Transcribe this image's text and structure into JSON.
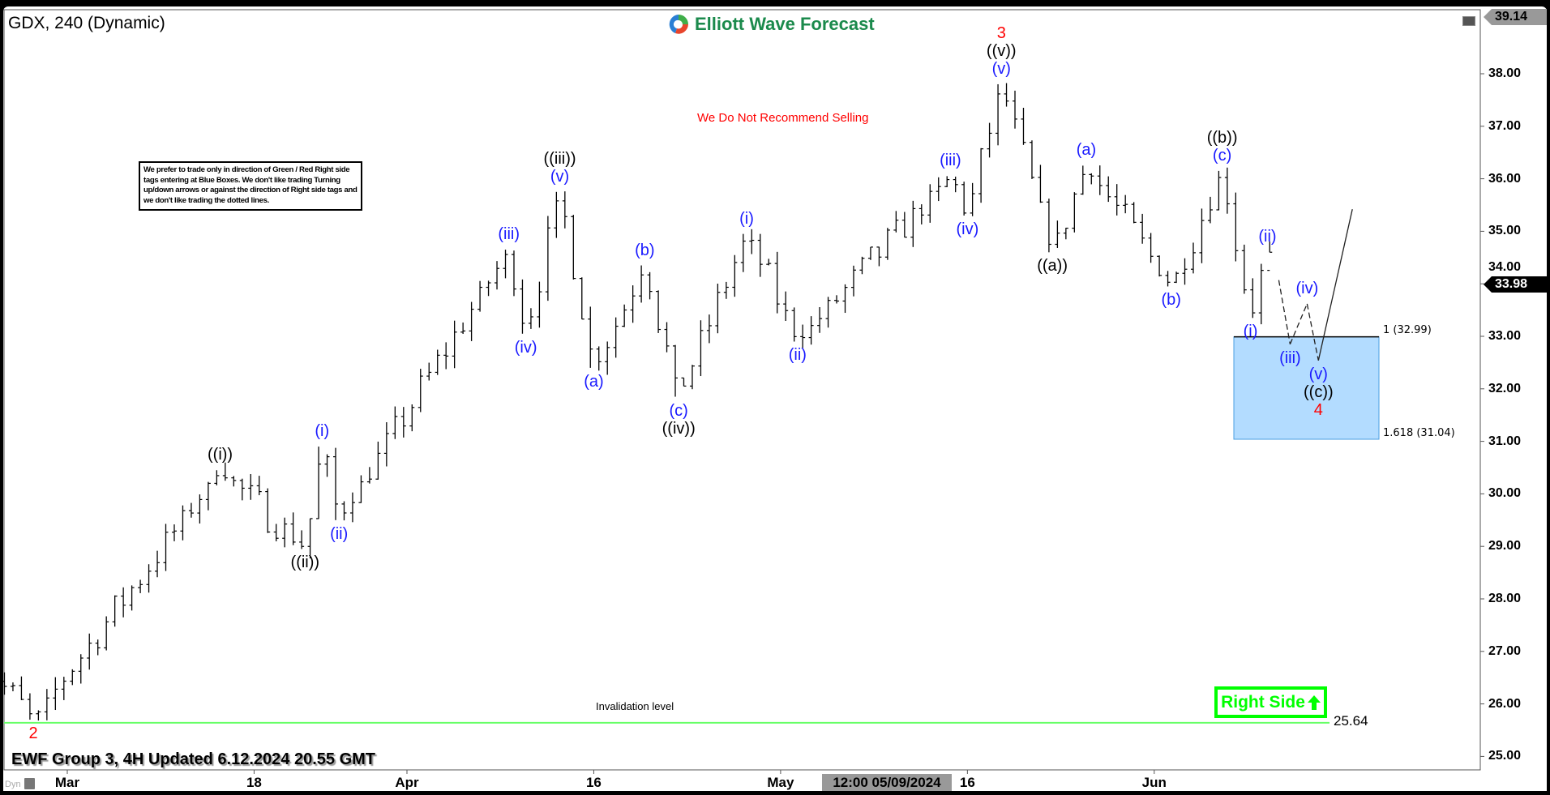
{
  "header": {
    "title": "GDX, 240 (Dynamic)",
    "logo_text": "Elliott Wave Forecast"
  },
  "note": "We prefer to trade only in direction of Green / Red Right side tags entering at Blue Boxes. We don't like trading Turning up/down arrows or against the direction of Right side tags and we don't like trading the dotted lines.",
  "warning": "We Do Not Recommend Selling",
  "invalidation": {
    "label": "Invalidation level",
    "value": "25.64",
    "price": 25.64,
    "color": "#66ff66"
  },
  "right_side": {
    "label": "Right Side",
    "icon": "arrow-up-icon",
    "color": "#00ff00"
  },
  "footer": {
    "text": "EWF Group 3, 4H Updated 6.12.2024 20.55 GMT",
    "dyn": "Dyn"
  },
  "colors": {
    "blue_label": "#1a1aff",
    "black_label": "#000000",
    "red_label": "#ff0000",
    "box_fill": "#b3dcff",
    "box_border": "#000000"
  },
  "chart_data": {
    "type": "ohlc",
    "symbol": "GDX",
    "timeframe": "240",
    "ylim": [
      25,
      39.14
    ],
    "y_ticks": [
      "25.00",
      "26.00",
      "27.00",
      "28.00",
      "29.00",
      "30.00",
      "31.00",
      "32.00",
      "33.00",
      "34.00",
      "35.00",
      "36.00",
      "37.00",
      "38.00"
    ],
    "y_tick_values": [
      25,
      26,
      27,
      28,
      29,
      30,
      31,
      32,
      33,
      34,
      35,
      36,
      37,
      38
    ],
    "x_ticks": [
      {
        "label": "Mar",
        "date": "2024-03-01"
      },
      {
        "label": "18",
        "date": "2024-03-18"
      },
      {
        "label": "Apr",
        "date": "2024-04-01"
      },
      {
        "label": "16",
        "date": "2024-04-16"
      },
      {
        "label": "May",
        "date": "2024-05-01"
      },
      {
        "label": "16",
        "date": "2024-05-16"
      },
      {
        "label": "Jun",
        "date": "2024-06-03"
      }
    ],
    "crosshair_date": "12:00 05/09/2024",
    "top_price_tag": "39.14",
    "last_price": "33.98",
    "pivots": [
      {
        "t": "2024-02-26",
        "p": 26.43,
        "labels": []
      },
      {
        "t": "2024-02-28",
        "p": 25.7,
        "side": "below",
        "labels": [
          {
            "text": "2",
            "color": "red"
          }
        ]
      },
      {
        "t": "2024-03-14",
        "p": 30.45,
        "side": "above",
        "labels": [
          {
            "text": "((i))",
            "color": "black"
          }
        ]
      },
      {
        "t": "2024-03-21",
        "p": 28.95,
        "side": "below",
        "labels": [
          {
            "text": "((ii))",
            "color": "black"
          }
        ]
      },
      {
        "t": "2024-03-22",
        "p": 30.9,
        "side": "above",
        "labels": [
          {
            "text": "(i)",
            "color": "blue"
          }
        ]
      },
      {
        "t": "2024-03-25",
        "p": 29.5,
        "side": "below",
        "labels": [
          {
            "text": "(ii)",
            "color": "blue"
          }
        ]
      },
      {
        "t": "2024-04-09",
        "p": 34.65,
        "side": "above",
        "labels": [
          {
            "text": "(iii)",
            "color": "blue"
          }
        ]
      },
      {
        "t": "2024-04-10",
        "p": 33.05,
        "side": "below",
        "labels": [
          {
            "text": "(iv)",
            "color": "blue"
          }
        ]
      },
      {
        "t": "2024-04-12",
        "p": 35.75,
        "side": "above",
        "labels": [
          {
            "text": "(v)",
            "color": "blue"
          },
          {
            "text": "((iii))",
            "color": "black"
          }
        ]
      },
      {
        "t": "2024-04-16",
        "p": 32.4,
        "side": "below",
        "labels": [
          {
            "text": "(a)",
            "color": "blue"
          }
        ]
      },
      {
        "t": "2024-04-19",
        "p": 34.35,
        "side": "above",
        "labels": [
          {
            "text": "(b)",
            "color": "blue"
          }
        ]
      },
      {
        "t": "2024-04-23",
        "p": 31.85,
        "side": "below",
        "labels": [
          {
            "text": "(c)",
            "color": "blue"
          },
          {
            "text": "((iv))",
            "color": "black"
          }
        ]
      },
      {
        "t": "2024-04-29",
        "p": 34.95,
        "side": "above",
        "labels": [
          {
            "text": "(i)",
            "color": "blue"
          }
        ]
      },
      {
        "t": "2024-05-02",
        "p": 32.9,
        "side": "below",
        "labels": [
          {
            "text": "(ii)",
            "color": "blue"
          }
        ]
      },
      {
        "t": "2024-05-15",
        "p": 36.05,
        "side": "above",
        "labels": [
          {
            "text": "(iii)",
            "color": "blue"
          }
        ]
      },
      {
        "t": "2024-05-16",
        "p": 35.3,
        "side": "below",
        "labels": [
          {
            "text": "(iv)",
            "color": "blue"
          }
        ]
      },
      {
        "t": "2024-05-20",
        "p": 37.8,
        "side": "above",
        "labels": [
          {
            "text": "(v)",
            "color": "blue"
          },
          {
            "text": "((v))",
            "color": "black"
          },
          {
            "text": "3",
            "color": "red"
          }
        ]
      },
      {
        "t": "2024-05-23",
        "p": 34.6,
        "side": "below",
        "labels": [
          {
            "text": "((a))",
            "color": "black"
          }
        ]
      },
      {
        "t": "2024-05-28",
        "p": 36.25,
        "side": "above",
        "labels": [
          {
            "text": "(a)",
            "color": "blue"
          }
        ]
      },
      {
        "t": "2024-06-04",
        "p": 33.95,
        "side": "below",
        "labels": [
          {
            "text": "(b)",
            "color": "blue"
          }
        ]
      },
      {
        "t": "2024-06-07",
        "p": 36.15,
        "side": "above",
        "labels": [
          {
            "text": "(c)",
            "color": "blue"
          },
          {
            "text": "((b))",
            "color": "black"
          }
        ]
      },
      {
        "t": "2024-06-11T04:00",
        "p": 33.35,
        "side": "below",
        "labels": [
          {
            "text": "(i)",
            "color": "blue"
          }
        ]
      },
      {
        "t": "2024-06-12T04:00",
        "p": 34.6,
        "side": "above",
        "labels": [
          {
            "text": "(ii)",
            "color": "blue"
          }
        ]
      },
      {
        "t": "2024-06-12T16:00",
        "p": 33.98,
        "labels": []
      }
    ],
    "projection": [
      {
        "t": "2024-06-12T20:00",
        "p": 34.07,
        "style": "dashed",
        "labels": []
      },
      {
        "t": "2024-06-13T12:00",
        "p": 32.85,
        "style": "dashed",
        "side": "below",
        "labels": [
          {
            "text": "(iii)",
            "color": "blue"
          }
        ]
      },
      {
        "t": "2024-06-14T12:00",
        "p": 33.62,
        "style": "dashed",
        "side": "above",
        "labels": [
          {
            "text": "(iv)",
            "color": "blue"
          }
        ]
      },
      {
        "t": "2024-06-17T04:00",
        "p": 32.54,
        "style": "dashed",
        "side": "below",
        "labels": [
          {
            "text": "(v)",
            "color": "blue"
          },
          {
            "text": "((c))",
            "color": "black"
          },
          {
            "text": "4",
            "color": "red"
          }
        ]
      },
      {
        "t": "2024-06-19T04:00",
        "p": 35.42,
        "style": "solid",
        "labels": []
      }
    ],
    "blue_box": {
      "top": 32.99,
      "bottom": 31.04,
      "top_label": "1 (32.99)",
      "bottom_label": "1.618 (31.04)"
    }
  }
}
